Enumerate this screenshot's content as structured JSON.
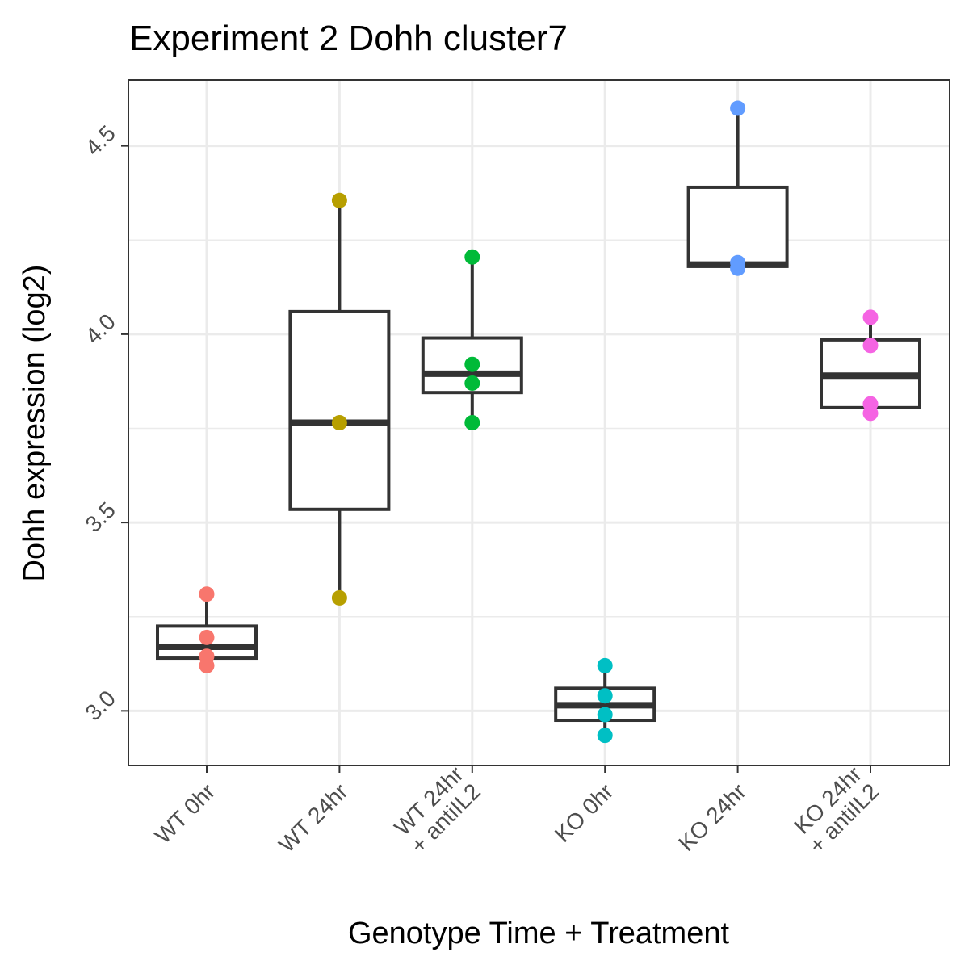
{
  "chart_data": {
    "type": "box",
    "title": "Experiment 2 Dohh cluster7",
    "xlabel": "Genotype Time + Treatment",
    "ylabel": "Dohh expression (log2)",
    "ylim": [
      2.855,
      4.675
    ],
    "yticks": [
      "3.0",
      "3.5",
      "4.0",
      "4.5"
    ],
    "grid": true,
    "categories": [
      {
        "label_lines": [
          "WT 0hr"
        ],
        "color": "#F8766D",
        "box": {
          "lower": 3.14,
          "q1": 3.14,
          "median": 3.17,
          "q3": 3.225,
          "upper": 3.31
        },
        "points": [
          3.31,
          3.195,
          3.145,
          3.12
        ]
      },
      {
        "label_lines": [
          "WT 24hr"
        ],
        "color": "#B79F00",
        "box": {
          "lower": 3.3,
          "q1": 3.535,
          "median": 3.765,
          "q3": 4.06,
          "upper": 4.355
        },
        "points": [
          4.355,
          3.765,
          3.3
        ]
      },
      {
        "label_lines": [
          "WT 24hr",
          "+ antiIL2"
        ],
        "color": "#00BA38",
        "box": {
          "lower": 3.765,
          "q1": 3.845,
          "median": 3.895,
          "q3": 3.99,
          "upper": 4.205
        },
        "points": [
          4.205,
          3.92,
          3.87,
          3.765
        ]
      },
      {
        "label_lines": [
          "KO 0hr"
        ],
        "color": "#00BFC4",
        "box": {
          "lower": 2.935,
          "q1": 2.975,
          "median": 3.015,
          "q3": 3.06,
          "upper": 3.12
        },
        "points": [
          3.12,
          3.04,
          2.99,
          2.935
        ]
      },
      {
        "label_lines": [
          "KO 24hr"
        ],
        "color": "#619CFF",
        "box": {
          "lower": 4.18,
          "q1": 4.18,
          "median": 4.185,
          "q3": 4.39,
          "upper": 4.6
        },
        "points": [
          4.6,
          4.19,
          4.175
        ]
      },
      {
        "label_lines": [
          "KO 24hr",
          "+ antiIL2"
        ],
        "color": "#F564E3",
        "box": {
          "lower": 3.805,
          "q1": 3.805,
          "median": 3.89,
          "q3": 3.985,
          "upper": 4.045
        },
        "points": [
          4.045,
          3.97,
          3.815,
          3.79
        ]
      }
    ]
  }
}
